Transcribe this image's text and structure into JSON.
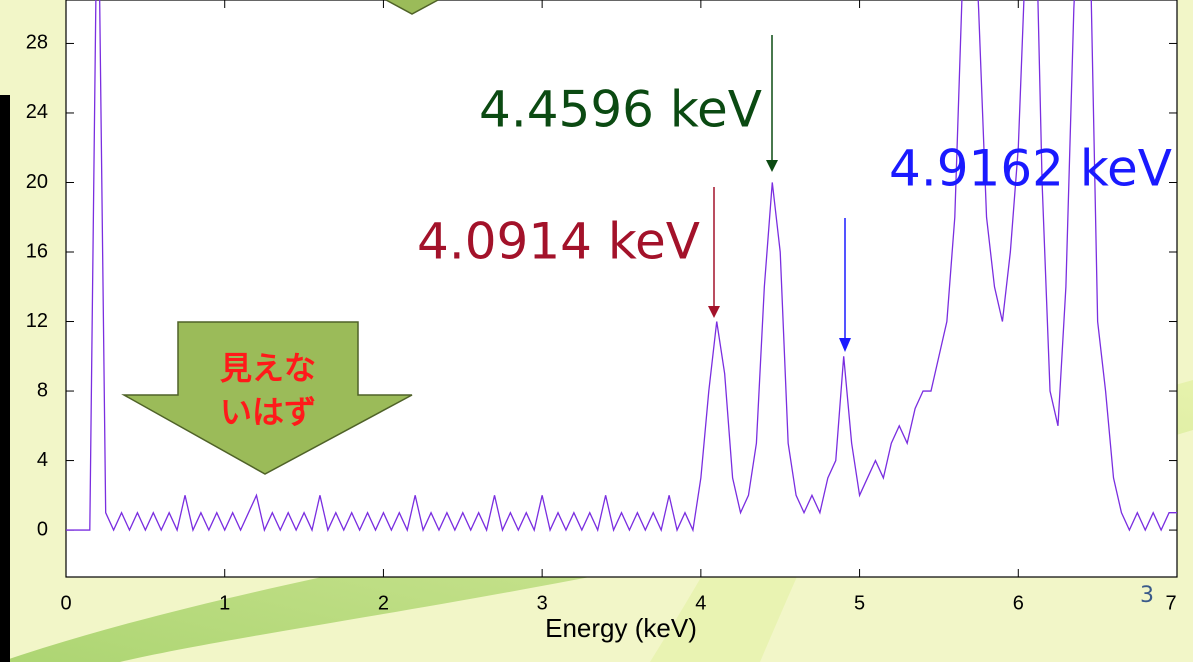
{
  "chart_data": {
    "type": "line",
    "xlabel": "Energy (keV)",
    "x": [
      0,
      0.05,
      0.1,
      0.15,
      0.2,
      0.25,
      0.3,
      0.35,
      0.4,
      0.45,
      0.5,
      0.55,
      0.6,
      0.65,
      0.7,
      0.75,
      0.8,
      0.85,
      0.9,
      0.95,
      1,
      1.05,
      1.1,
      1.15,
      1.2,
      1.25,
      1.3,
      1.35,
      1.4,
      1.45,
      1.5,
      1.55,
      1.6,
      1.65,
      1.7,
      1.75,
      1.8,
      1.85,
      1.9,
      1.95,
      2,
      2.05,
      2.1,
      2.15,
      2.2,
      2.25,
      2.3,
      2.35,
      2.4,
      2.45,
      2.5,
      2.55,
      2.6,
      2.65,
      2.7,
      2.75,
      2.8,
      2.85,
      2.9,
      2.95,
      3,
      3.05,
      3.1,
      3.15,
      3.2,
      3.25,
      3.3,
      3.35,
      3.4,
      3.45,
      3.5,
      3.55,
      3.6,
      3.65,
      3.7,
      3.75,
      3.8,
      3.85,
      3.9,
      3.95,
      4,
      4.05,
      4.1,
      4.15,
      4.2,
      4.25,
      4.3,
      4.35,
      4.4,
      4.45,
      4.5,
      4.55,
      4.6,
      4.65,
      4.7,
      4.75,
      4.8,
      4.85,
      4.9,
      4.95,
      5,
      5.05,
      5.1,
      5.15,
      5.2,
      5.25,
      5.3,
      5.35,
      5.4,
      5.45,
      5.5,
      5.55,
      5.6,
      5.65,
      5.7,
      5.75,
      5.8,
      5.85,
      5.9,
      5.95,
      6,
      6.05,
      6.1,
      6.15,
      6.2,
      6.25,
      6.3,
      6.35,
      6.4,
      6.45,
      6.5,
      6.55,
      6.6,
      6.65,
      6.7,
      6.75,
      6.8,
      6.85,
      6.9,
      6.95,
      7
    ],
    "series": [
      {
        "name": "spectrum",
        "color": "#7a2ee0",
        "values": [
          0,
          0,
          0,
          0,
          40,
          1,
          0,
          1,
          0,
          1,
          0,
          1,
          0,
          1,
          0,
          2,
          0,
          1,
          0,
          1,
          0,
          1,
          0,
          1,
          2,
          0,
          1,
          0,
          1,
          0,
          1,
          0,
          2,
          0,
          1,
          0,
          1,
          0,
          1,
          0,
          1,
          0,
          1,
          0,
          2,
          0,
          1,
          0,
          1,
          0,
          1,
          0,
          1,
          0,
          2,
          0,
          1,
          0,
          1,
          0,
          2,
          0,
          1,
          0,
          1,
          0,
          1,
          0,
          2,
          0,
          1,
          0,
          1,
          0,
          1,
          0,
          2,
          0,
          1,
          0,
          3,
          8,
          12,
          9,
          3,
          1,
          2,
          5,
          14,
          20,
          16,
          5,
          2,
          1,
          2,
          1,
          3,
          4,
          10,
          5,
          2,
          3,
          4,
          3,
          5,
          6,
          5,
          7,
          8,
          8,
          10,
          12,
          18,
          32,
          40,
          30,
          18,
          14,
          12,
          16,
          22,
          34,
          40,
          20,
          8,
          6,
          14,
          30,
          40,
          35,
          12,
          8,
          3,
          1,
          0,
          1,
          0,
          1,
          0,
          1,
          1
        ]
      }
    ],
    "xlim": [
      0,
      7
    ],
    "ylim": [
      -2.7,
      30.5
    ],
    "xticks": [
      0,
      1,
      2,
      3,
      4,
      5,
      6,
      7
    ],
    "yticks": [
      0,
      4,
      8,
      12,
      16,
      20,
      24,
      28
    ],
    "annotations": [
      {
        "text": "4.4596 keV",
        "color": "#0b4a12"
      },
      {
        "text": "4.0914 keV",
        "color": "#a3122a"
      },
      {
        "text": "4.9162 keV",
        "color": "#1a1aff"
      }
    ],
    "callout": [
      "見えな",
      "いはず"
    ]
  },
  "slide_number": "3"
}
